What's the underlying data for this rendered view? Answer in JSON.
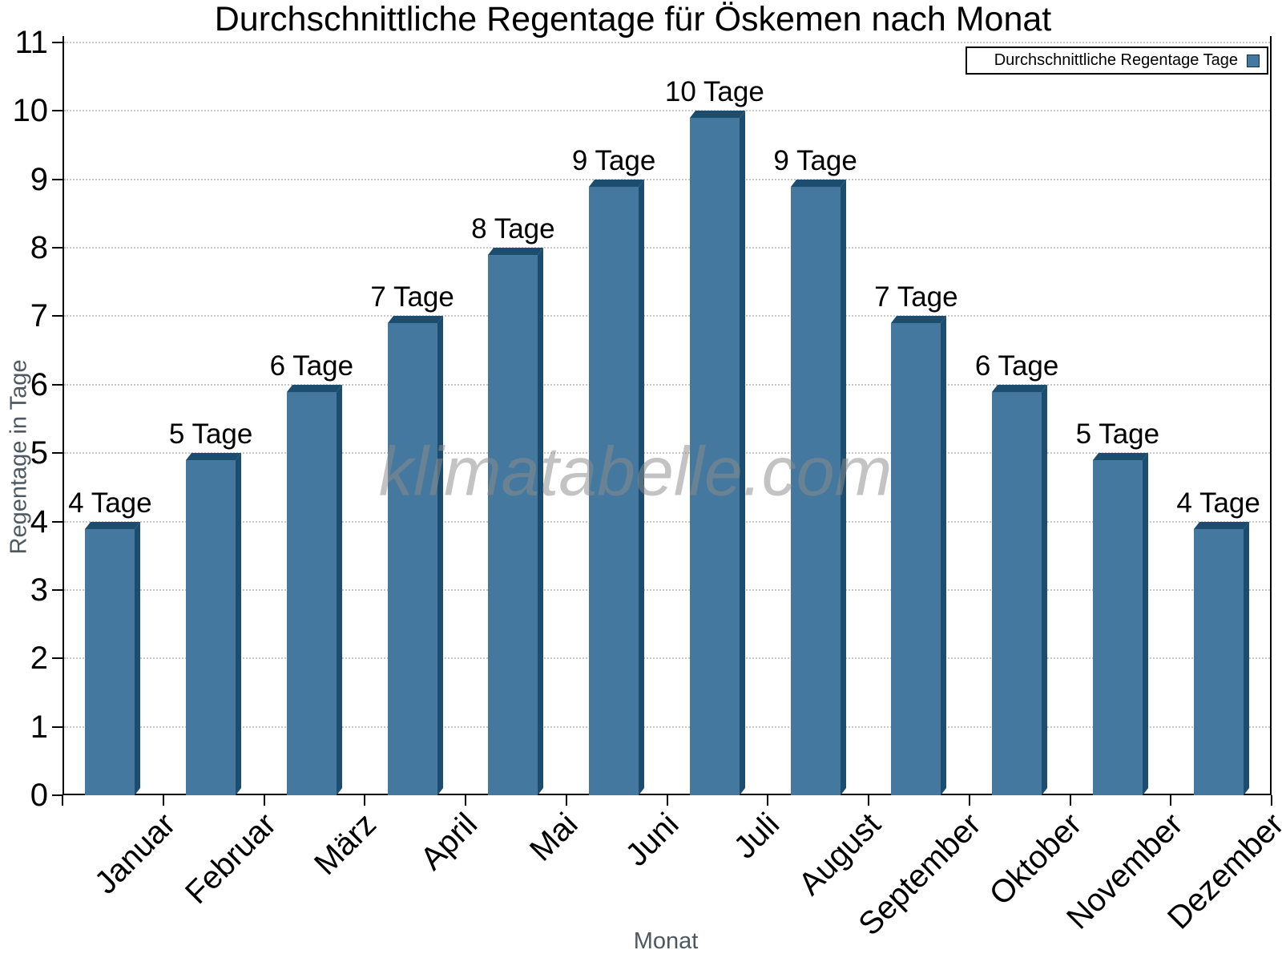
{
  "chart_data": {
    "type": "bar",
    "title": "Durchschnittliche Regentage für Öskemen nach Monat",
    "categories": [
      "Januar",
      "Februar",
      "März",
      "April",
      "Mai",
      "Juni",
      "Juli",
      "August",
      "September",
      "Oktober",
      "November",
      "Dezember"
    ],
    "values": [
      4,
      5,
      6,
      7,
      8,
      9,
      10,
      9,
      7,
      6,
      5,
      4
    ],
    "bar_labels": [
      "4 Tage",
      "5 Tage",
      "6 Tage",
      "7 Tage",
      "8 Tage",
      "9 Tage",
      "10 Tage",
      "9 Tage",
      "7 Tage",
      "6 Tage",
      "5 Tage",
      "4 Tage"
    ],
    "xlabel": "Monat",
    "ylabel": "Regentage in Tage",
    "ylim": [
      0,
      11
    ],
    "ytick_step": 1,
    "yticks": [
      0,
      1,
      2,
      3,
      4,
      5,
      6,
      7,
      8,
      9,
      10,
      11
    ],
    "grid": "horizontal-dotted",
    "legend": {
      "label": "Durchschnittliche Regentage Tage",
      "position": "top-right"
    },
    "watermark": "klimatabelle.com",
    "colors": {
      "bar_face": "#44789E",
      "bar_dark": "#1C4D6E",
      "axis": "#000000",
      "gridline": "#c9c9c9",
      "axis_title": "#4e5861",
      "tick_label": "#000000",
      "legend_bg": "#ffffff",
      "legend_border": "#000000",
      "watermark": "#8c8c8c"
    }
  }
}
